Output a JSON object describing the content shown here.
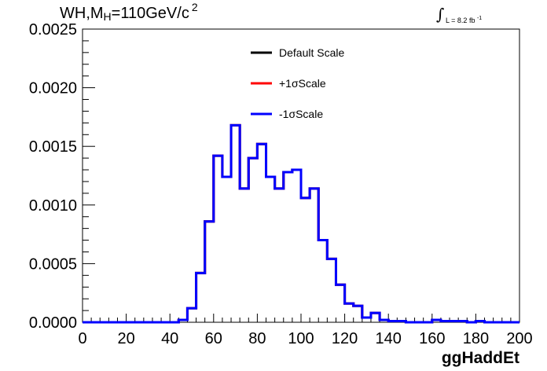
{
  "title": {
    "prefix": "WH,M",
    "sub": "H",
    "main": "=110GeV/c",
    "sup": "2"
  },
  "lumi": {
    "label": "L = 8.2 fb",
    "sup": "-1"
  },
  "chart_data": {
    "type": "line",
    "style": "step-histogram",
    "xlabel": "ggHaddEt",
    "ylabel": "",
    "xlim": [
      0,
      200
    ],
    "ylim": [
      0,
      0.0025
    ],
    "x_ticks": [
      "0",
      "20",
      "40",
      "60",
      "80",
      "100",
      "120",
      "140",
      "160",
      "180",
      "200"
    ],
    "y_ticks": [
      "0.0000",
      "0.0005",
      "0.0010",
      "0.0015",
      "0.0020",
      "0.0025"
    ],
    "grid": false,
    "legend_position": "top-center",
    "bin_edges": [
      0,
      4,
      8,
      12,
      16,
      20,
      24,
      28,
      32,
      36,
      40,
      44,
      48,
      52,
      56,
      60,
      64,
      68,
      72,
      76,
      80,
      84,
      88,
      92,
      96,
      100,
      104,
      108,
      112,
      116,
      120,
      124,
      128,
      132,
      136,
      140,
      144,
      148,
      152,
      156,
      160,
      164,
      168,
      172,
      176,
      180,
      184,
      188,
      192,
      196,
      200
    ],
    "series": [
      {
        "name": "Default Scale",
        "color": "#000000",
        "values": [
          0,
          0,
          0,
          0,
          0,
          0,
          0,
          0,
          0,
          0,
          0,
          2e-05,
          0.00012,
          0.00042,
          0.00086,
          0.00142,
          0.00124,
          0.00168,
          0.00114,
          0.0014,
          0.00152,
          0.00124,
          0.00114,
          0.00128,
          0.0013,
          0.00106,
          0.00114,
          0.0007,
          0.00054,
          0.00032,
          0.00016,
          0.00014,
          4e-05,
          8e-05,
          2e-05,
          1e-05,
          1e-05,
          0,
          0,
          0,
          2e-05,
          1e-05,
          1e-05,
          1e-05,
          0,
          1e-05,
          0,
          0,
          0,
          0
        ]
      },
      {
        "name": "+1σScale",
        "color": "#ff0000",
        "values": [
          0,
          0,
          0,
          0,
          0,
          0,
          0,
          0,
          0,
          0,
          0,
          2e-05,
          0.00012,
          0.00042,
          0.00086,
          0.00142,
          0.00124,
          0.00168,
          0.00114,
          0.0014,
          0.00152,
          0.00124,
          0.00114,
          0.00128,
          0.0013,
          0.00106,
          0.00114,
          0.0007,
          0.00054,
          0.00032,
          0.00016,
          0.00014,
          4e-05,
          8e-05,
          2e-05,
          1e-05,
          1e-05,
          0,
          0,
          0,
          2e-05,
          1e-05,
          1e-05,
          1e-05,
          0,
          1e-05,
          0,
          0,
          0,
          0
        ]
      },
      {
        "name": "-1σScale",
        "color": "#0000ff",
        "values": [
          0,
          0,
          0,
          0,
          0,
          0,
          0,
          0,
          0,
          0,
          0,
          2e-05,
          0.00012,
          0.00042,
          0.00086,
          0.00142,
          0.00124,
          0.00168,
          0.00114,
          0.0014,
          0.00152,
          0.00124,
          0.00114,
          0.00128,
          0.0013,
          0.00106,
          0.00114,
          0.0007,
          0.00054,
          0.00032,
          0.00016,
          0.00014,
          4e-05,
          8e-05,
          2e-05,
          1e-05,
          1e-05,
          0,
          0,
          0,
          2e-05,
          1e-05,
          1e-05,
          1e-05,
          0,
          1e-05,
          0,
          0,
          0,
          0
        ]
      }
    ]
  }
}
